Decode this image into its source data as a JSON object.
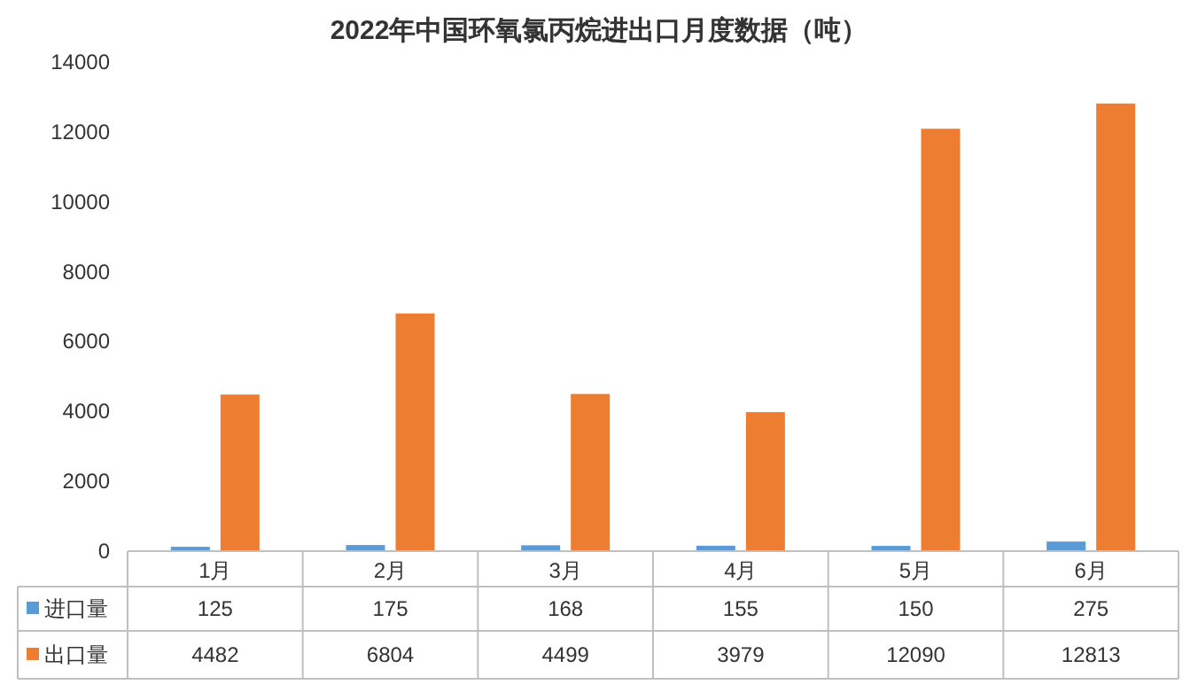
{
  "chart_data": {
    "type": "bar",
    "title": "2022年中国环氧氯丙烷进出口月度数据（吨）",
    "categories": [
      "1月",
      "2月",
      "3月",
      "4月",
      "5月",
      "6月"
    ],
    "series": [
      {
        "name": "进口量",
        "color": "#5b9bd5",
        "values": [
          125,
          175,
          168,
          155,
          150,
          275
        ]
      },
      {
        "name": "出口量",
        "color": "#ed7d31",
        "values": [
          4482,
          6804,
          4499,
          3979,
          12090,
          12813
        ]
      }
    ],
    "ylim": [
      0,
      14000
    ],
    "yticks": [
      0,
      2000,
      4000,
      6000,
      8000,
      10000,
      12000,
      14000
    ],
    "data_labels": true,
    "legend": "bottom",
    "grid": false
  }
}
